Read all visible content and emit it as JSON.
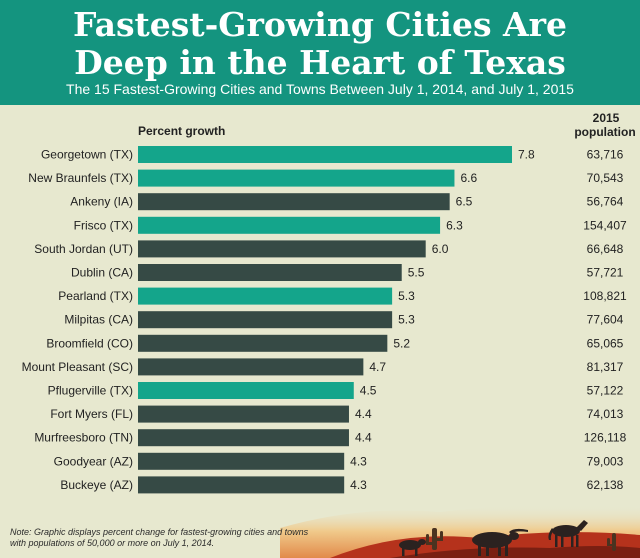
{
  "header": {
    "title_line1": "Fastest-Growing Cities Are",
    "title_line2": "Deep in the Heart of Texas",
    "subtitle": "The 15 Fastest-Growing Cities and Towns Between July 1, 2014, and July 1, 2015"
  },
  "column_headers": {
    "growth": "Percent growth",
    "population_line1": "2015",
    "population_line2": "population"
  },
  "note": "Note: Graphic displays percent change for fastest-growing cities and towns with populations of 50,000 or more on July 1, 2014.",
  "colors": {
    "texas": "#14a58b",
    "other": "#364a45",
    "header_bg": "#14947f",
    "background": "#e7e8cf"
  },
  "chart_data": {
    "type": "bar",
    "orientation": "horizontal",
    "categories": [
      "Georgetown (TX)",
      "New Braunfels (TX)",
      "Ankeny (IA)",
      "Frisco (TX)",
      "South Jordan (UT)",
      "Dublin (CA)",
      "Pearland (TX)",
      "Milpitas (CA)",
      "Broomfield (CO)",
      "Mount Pleasant (SC)",
      "Pflugerville (TX)",
      "Fort Myers (FL)",
      "Murfreesboro (TN)",
      "Goodyear (AZ)",
      "Buckeye (AZ)"
    ],
    "values": [
      7.8,
      6.6,
      6.5,
      6.3,
      6.0,
      5.5,
      5.3,
      5.3,
      5.2,
      4.7,
      4.5,
      4.4,
      4.4,
      4.3,
      4.3
    ],
    "value_labels": [
      "7.8",
      "6.6",
      "6.5",
      "6.3",
      "6.0",
      "5.5",
      "5.3",
      "5.3",
      "5.2",
      "4.7",
      "4.5",
      "4.4",
      "4.4",
      "4.3",
      "4.3"
    ],
    "population": [
      "63,716",
      "70,543",
      "56,764",
      "154,407",
      "66,648",
      "57,721",
      "108,821",
      "77,604",
      "65,065",
      "81,317",
      "57,122",
      "74,013",
      "126,118",
      "79,003",
      "62,138"
    ],
    "is_texas": [
      true,
      true,
      false,
      true,
      false,
      false,
      true,
      false,
      false,
      false,
      true,
      false,
      false,
      false,
      false
    ],
    "xlim": [
      0,
      7.8
    ],
    "grid": false,
    "legend": "none"
  }
}
